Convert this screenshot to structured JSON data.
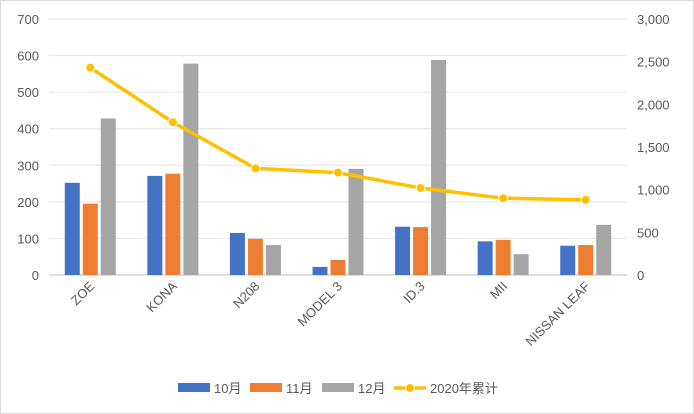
{
  "chart_data": {
    "type": "bar",
    "categories": [
      "ZOE",
      "KONA",
      "N208",
      "MODEL 3",
      "ID.3",
      "MII",
      "NISSAN LEAF"
    ],
    "series": [
      {
        "name": "10月",
        "type": "bar",
        "axis": "left",
        "color": "#4472c4",
        "values": [
          252,
          271,
          115,
          22,
          132,
          92,
          80
        ]
      },
      {
        "name": "11月",
        "type": "bar",
        "axis": "left",
        "color": "#ed7d31",
        "values": [
          195,
          277,
          99,
          41,
          131,
          96,
          82
        ]
      },
      {
        "name": "12月",
        "type": "bar",
        "axis": "left",
        "color": "#a5a5a5",
        "values": [
          428,
          578,
          82,
          290,
          588,
          57,
          137
        ]
      },
      {
        "name": "2020年累计",
        "type": "line",
        "axis": "right",
        "color": "#ffc000",
        "values": [
          2430,
          1790,
          1250,
          1200,
          1020,
          900,
          880
        ]
      }
    ],
    "ylim_left": [
      0,
      700
    ],
    "yticks_left": [
      "0",
      "100",
      "200",
      "300",
      "400",
      "500",
      "600",
      "700"
    ],
    "ylim_right": [
      0,
      3000
    ],
    "yticks_right": [
      "0",
      "500",
      "1,000",
      "1,500",
      "2,000",
      "2,500",
      "3,000"
    ],
    "grid": "horizontal",
    "legend": "bottom"
  }
}
